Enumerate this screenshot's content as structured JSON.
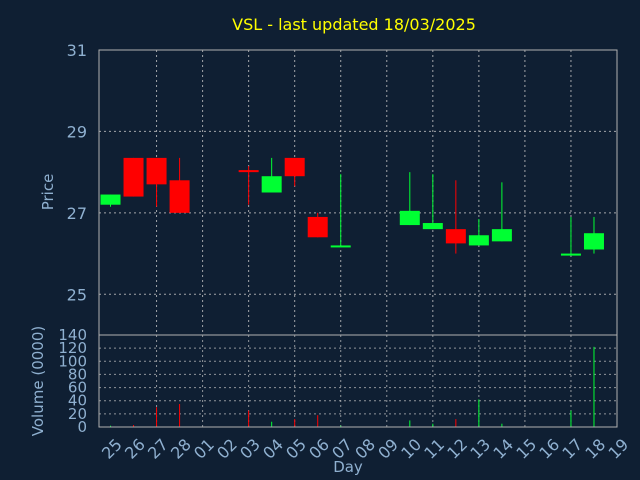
{
  "chart_data": {
    "type": "candlestick",
    "title": "VSL - last updated 18/03/2025",
    "ylabel": "Price",
    "volume_ylabel": "Volume (0000)",
    "xlabel": "Day",
    "ylim": [
      24,
      31
    ],
    "yticks": [
      25,
      27,
      29,
      31
    ],
    "volume_ylim": [
      0,
      140
    ],
    "volume_yticks": [
      0,
      20,
      40,
      60,
      80,
      100,
      120,
      140
    ],
    "grid": true,
    "colors": {
      "background": "#0f1f33",
      "text": "#8fb0d0",
      "title": "#ffff00",
      "grid": "#c8c8c8",
      "axis": "#b0b0b0",
      "up": "#00ff33",
      "down": "#ff0000"
    },
    "days": [
      {
        "label": "25",
        "open": 27.2,
        "high": 27.45,
        "low": 27.15,
        "close": 27.45,
        "volume": 2
      },
      {
        "label": "26",
        "open": 28.35,
        "high": 28.35,
        "low": 27.4,
        "close": 27.4,
        "volume": 3
      },
      {
        "label": "27",
        "open": 28.35,
        "high": 28.35,
        "low": 27.15,
        "close": 27.7,
        "volume": 30
      },
      {
        "label": "28",
        "open": 27.8,
        "high": 28.35,
        "low": 27.0,
        "close": 27.0,
        "volume": 35
      },
      {
        "label": "01",
        "open": null,
        "high": null,
        "low": null,
        "close": null,
        "volume": 0
      },
      {
        "label": "02",
        "open": null,
        "high": null,
        "low": null,
        "close": null,
        "volume": 0
      },
      {
        "label": "03",
        "open": 28.05,
        "high": 28.15,
        "low": 27.2,
        "close": 28.0,
        "volume": 25
      },
      {
        "label": "04",
        "open": 27.5,
        "high": 28.35,
        "low": 27.5,
        "close": 27.9,
        "volume": 8
      },
      {
        "label": "05",
        "open": 28.35,
        "high": 28.35,
        "low": 27.65,
        "close": 27.9,
        "volume": 12
      },
      {
        "label": "06",
        "open": 26.9,
        "high": 27.0,
        "low": 26.4,
        "close": 26.4,
        "volume": 18
      },
      {
        "label": "07",
        "open": 26.2,
        "high": 27.95,
        "low": 26.2,
        "close": 26.2,
        "volume": 2
      },
      {
        "label": "08",
        "open": null,
        "high": null,
        "low": null,
        "close": null,
        "volume": 0
      },
      {
        "label": "09",
        "open": null,
        "high": null,
        "low": null,
        "close": null,
        "volume": 0
      },
      {
        "label": "10",
        "open": 26.7,
        "high": 28.0,
        "low": 26.7,
        "close": 27.05,
        "volume": 10
      },
      {
        "label": "11",
        "open": 26.6,
        "high": 27.95,
        "low": 26.6,
        "close": 26.75,
        "volume": 5
      },
      {
        "label": "12",
        "open": 26.6,
        "high": 27.8,
        "low": 26.0,
        "close": 26.25,
        "volume": 12
      },
      {
        "label": "13",
        "open": 26.2,
        "high": 26.85,
        "low": 26.2,
        "close": 26.45,
        "volume": 42
      },
      {
        "label": "14",
        "open": 26.3,
        "high": 27.75,
        "low": 26.3,
        "close": 26.6,
        "volume": 5
      },
      {
        "label": "15",
        "open": null,
        "high": null,
        "low": null,
        "close": null,
        "volume": 0
      },
      {
        "label": "16",
        "open": null,
        "high": null,
        "low": null,
        "close": null,
        "volume": 0
      },
      {
        "label": "17",
        "open": 25.95,
        "high": 26.9,
        "low": 25.95,
        "close": 26.0,
        "volume": 25
      },
      {
        "label": "18",
        "open": 26.1,
        "high": 26.9,
        "low": 26.0,
        "close": 26.5,
        "volume": 122
      }
    ],
    "extra_xlabel": "19"
  }
}
